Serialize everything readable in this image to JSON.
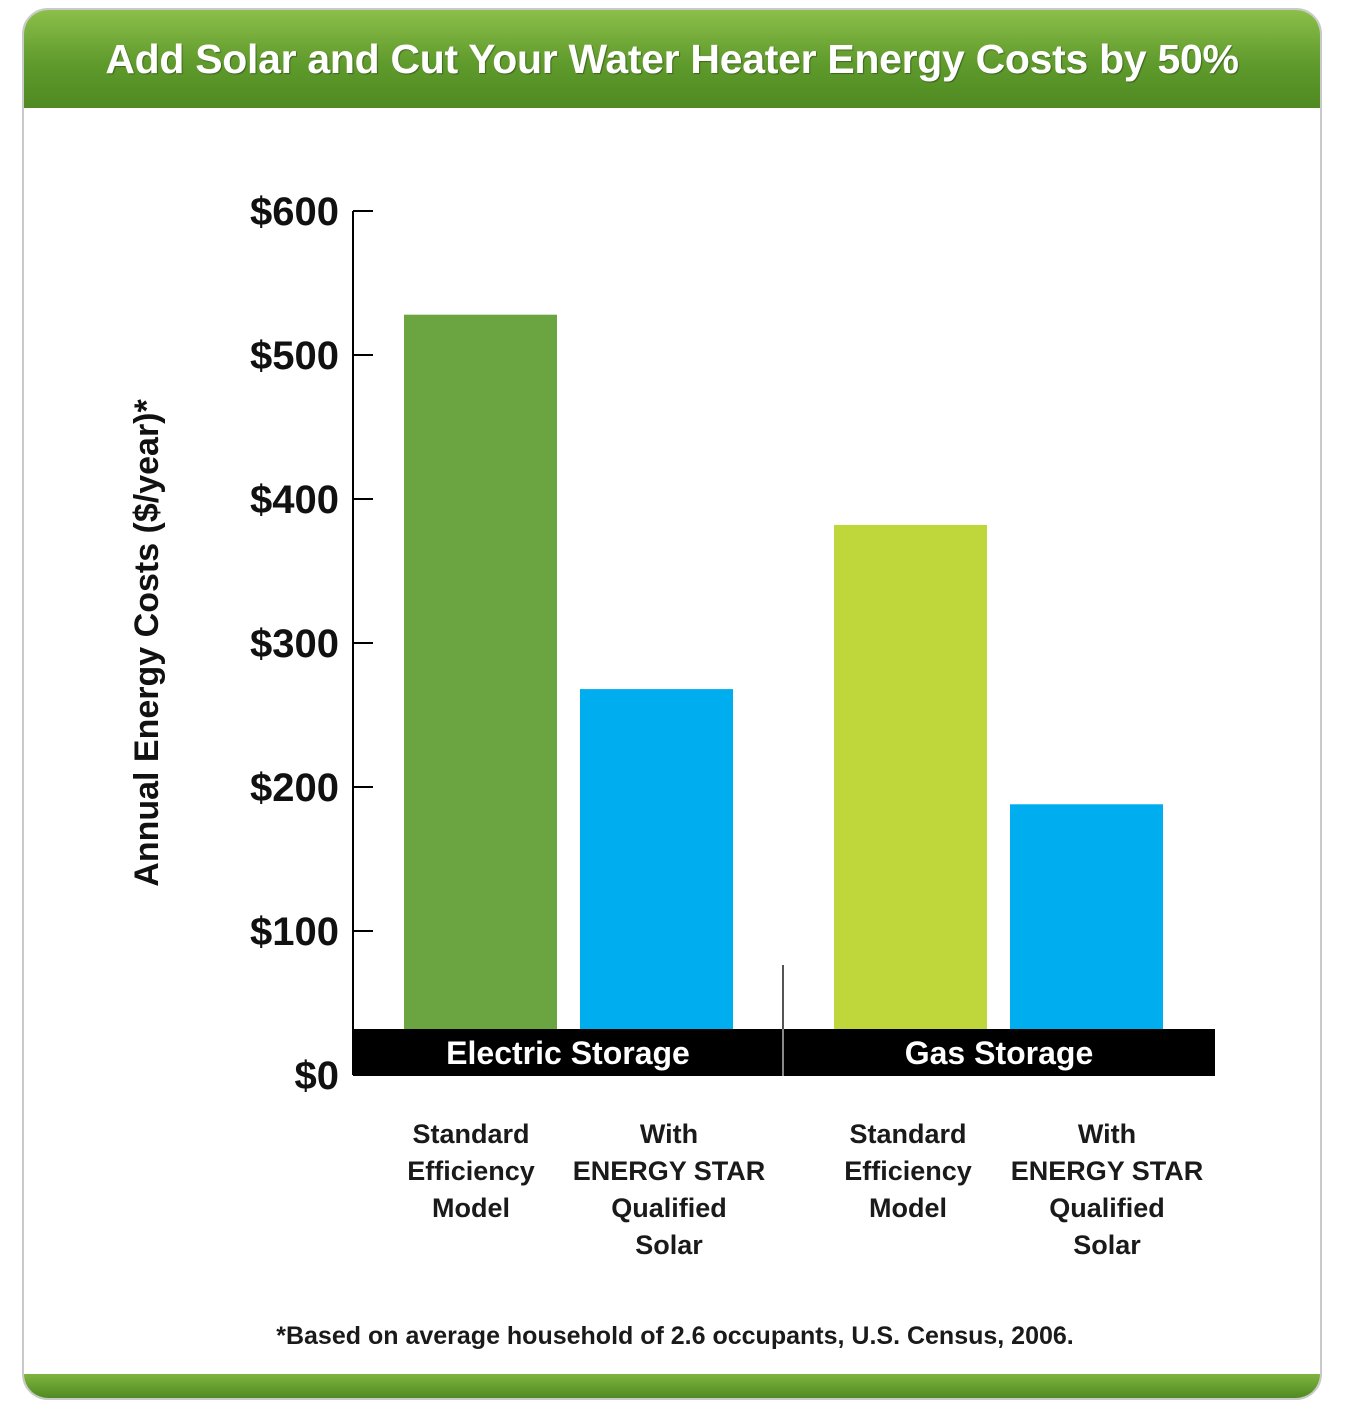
{
  "title": "Add Solar and Cut Your Water Heater Energy Costs by 50%",
  "footnote": "*Based on average household of 2.6 occupants, U.S. Census, 2006.",
  "colors": {
    "header_green": "#5f9a2c",
    "electric_standard": "#6aa541",
    "gas_standard": "#c0d73c",
    "solar": "#00aeef",
    "group_band": "#000000"
  },
  "chart_data": {
    "type": "bar",
    "title": "Add Solar and Cut Your Water Heater Energy Costs by 50%",
    "ylabel": "Annual Energy Costs ($/year)*",
    "ylim": [
      0,
      600
    ],
    "yticks": [
      "$0",
      "$100",
      "$200",
      "$300",
      "$400",
      "$500",
      "$600"
    ],
    "yticks_values": [
      0,
      100,
      200,
      300,
      400,
      500,
      600
    ],
    "grid": false,
    "groups": [
      {
        "label": "Electric Storage",
        "bars": [
          {
            "category": [
              "Standard",
              "Efficiency",
              "Model"
            ],
            "value": 528,
            "color": "#6aa541"
          },
          {
            "category": [
              "With",
              "ENERGY STAR",
              "Qualified",
              "Solar"
            ],
            "value": 268,
            "color": "#00aeef"
          }
        ]
      },
      {
        "label": "Gas Storage",
        "bars": [
          {
            "category": [
              "Standard",
              "Efficiency",
              "Model"
            ],
            "value": 382,
            "color": "#c0d73c"
          },
          {
            "category": [
              "With",
              "ENERGY STAR",
              "Qualified",
              "Solar"
            ],
            "value": 188,
            "color": "#00aeef"
          }
        ]
      }
    ]
  }
}
